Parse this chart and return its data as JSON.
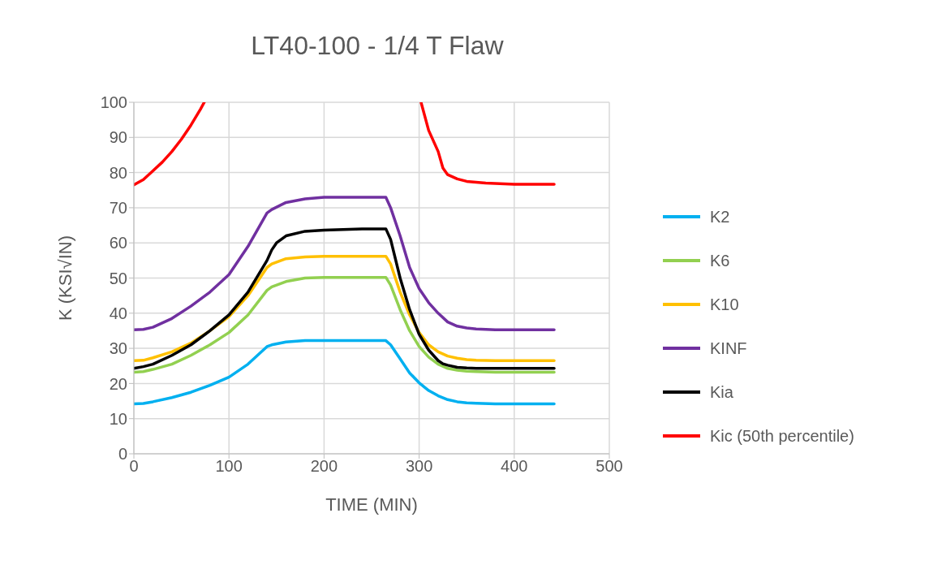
{
  "chart_data": {
    "type": "line",
    "title": "LT40-100 - 1/4 T Flaw",
    "xlabel": "TIME (MIN)",
    "ylabel": "K (KSI√IN)",
    "xlim": [
      0,
      500
    ],
    "xticks": [
      0,
      100,
      200,
      300,
      400,
      500
    ],
    "ylim": [
      0,
      100
    ],
    "yticks": [
      0,
      10,
      20,
      30,
      40,
      50,
      60,
      70,
      80,
      90,
      100
    ],
    "grid": true,
    "legend": "right",
    "line_style": "solid",
    "series": [
      {
        "name": "K2",
        "color": "#00b0f0",
        "x": [
          0,
          10,
          20,
          40,
          60,
          80,
          100,
          120,
          140,
          145,
          160,
          180,
          200,
          220,
          240,
          265,
          270,
          280,
          290,
          300,
          310,
          320,
          330,
          340,
          350,
          360,
          380,
          400,
          442
        ],
        "values": [
          14.2,
          14.3,
          14.8,
          16,
          17.5,
          19.5,
          21.8,
          25.5,
          30.5,
          31,
          31.8,
          32.2,
          32.2,
          32.2,
          32.2,
          32.2,
          31,
          27,
          23,
          20.2,
          18,
          16.5,
          15.4,
          14.8,
          14.5,
          14.4,
          14.2,
          14.2,
          14.2
        ]
      },
      {
        "name": "K6",
        "color": "#92d050",
        "x": [
          0,
          10,
          20,
          40,
          60,
          80,
          100,
          120,
          140,
          145,
          160,
          180,
          200,
          220,
          240,
          265,
          270,
          280,
          290,
          300,
          310,
          320,
          330,
          340,
          350,
          360,
          380,
          400,
          442
        ],
        "values": [
          23.2,
          23.4,
          24,
          25.5,
          28,
          31,
          34.5,
          39.5,
          46.5,
          47.5,
          49,
          50,
          50.2,
          50.2,
          50.2,
          50.2,
          48,
          41,
          35,
          30.5,
          27.5,
          25.5,
          24.3,
          23.8,
          23.5,
          23.4,
          23.2,
          23.2,
          23.2
        ]
      },
      {
        "name": "K10",
        "color": "#ffc000",
        "x": [
          0,
          10,
          20,
          40,
          60,
          80,
          100,
          120,
          140,
          145,
          160,
          180,
          200,
          220,
          240,
          265,
          270,
          280,
          290,
          300,
          310,
          320,
          330,
          340,
          350,
          360,
          380,
          400,
          442
        ],
        "values": [
          26.5,
          26.6,
          27.3,
          29,
          31.5,
          35,
          39,
          45,
          53,
          54,
          55.5,
          56,
          56.2,
          56.2,
          56.2,
          56.2,
          54,
          46,
          39.5,
          34.5,
          31,
          29,
          27.8,
          27.2,
          26.8,
          26.6,
          26.5,
          26.5,
          26.5
        ]
      },
      {
        "name": "KINF",
        "color": "#7030a0",
        "x": [
          0,
          10,
          20,
          40,
          60,
          80,
          100,
          120,
          140,
          145,
          160,
          180,
          200,
          220,
          240,
          265,
          270,
          280,
          290,
          300,
          310,
          320,
          330,
          340,
          350,
          360,
          380,
          400,
          442
        ],
        "values": [
          35.3,
          35.4,
          36,
          38.5,
          42,
          46,
          51,
          59,
          68.5,
          69.5,
          71.5,
          72.5,
          73,
          73,
          73,
          73,
          70,
          62,
          53,
          47,
          43,
          40,
          37.5,
          36.3,
          35.8,
          35.5,
          35.3,
          35.3,
          35.3
        ]
      },
      {
        "name": "Kia",
        "color": "#000000",
        "x": [
          0,
          10,
          20,
          40,
          60,
          80,
          100,
          120,
          140,
          145,
          150,
          160,
          180,
          200,
          220,
          240,
          265,
          270,
          280,
          290,
          300,
          310,
          320,
          325,
          330,
          340,
          350,
          360,
          380,
          400,
          442
        ],
        "values": [
          24.3,
          24.8,
          25.5,
          28,
          31,
          35,
          39.5,
          46,
          55,
          58,
          60,
          62,
          63.3,
          63.6,
          63.8,
          64,
          64,
          61,
          50,
          41,
          34,
          29.5,
          26.5,
          25.6,
          25.2,
          24.6,
          24.4,
          24.3,
          24.3,
          24.3,
          24.3
        ]
      },
      {
        "name": "Kic (50th percentile)",
        "color": "#ff0000",
        "x": [
          0,
          10,
          20,
          30,
          40,
          50,
          60,
          70,
          74,
          188,
          302,
          310,
          320,
          325,
          330,
          340,
          350,
          370,
          400,
          442
        ],
        "values": [
          76.5,
          78,
          80.5,
          83,
          86,
          89.5,
          93.5,
          98,
          100,
          null,
          100,
          92,
          86,
          81.3,
          79.4,
          78.2,
          77.5,
          77,
          76.7,
          76.7
        ]
      }
    ]
  }
}
